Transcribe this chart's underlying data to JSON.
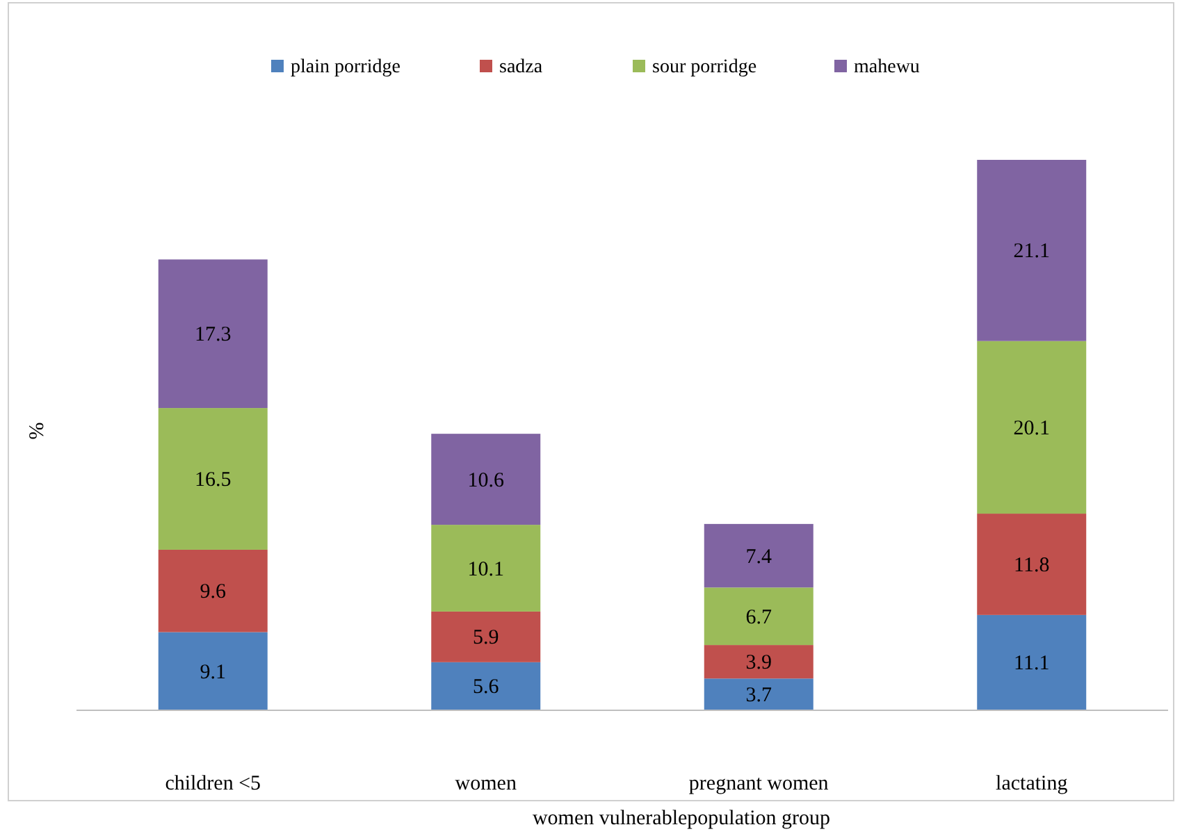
{
  "chart_data": {
    "type": "bar",
    "stacked": true,
    "data_labels": true,
    "legend": "top",
    "ylabel": "%",
    "xlabel": "women vulnerablepopulation group",
    "categories": [
      "children <5",
      "women",
      "pregnant women",
      "lactating"
    ],
    "series": [
      {
        "name": "plain porridge",
        "color": "#4f81bd",
        "values": [
          9.1,
          5.6,
          3.7,
          11.1
        ]
      },
      {
        "name": "sadza",
        "color": "#c0504d",
        "values": [
          9.6,
          5.9,
          3.9,
          11.8
        ]
      },
      {
        "name": "sour porridge",
        "color": "#9bbb59",
        "values": [
          16.5,
          10.1,
          6.7,
          20.1
        ]
      },
      {
        "name": "mahewu",
        "color": "#8064a2",
        "values": [
          17.3,
          10.6,
          7.4,
          21.1
        ]
      }
    ]
  }
}
